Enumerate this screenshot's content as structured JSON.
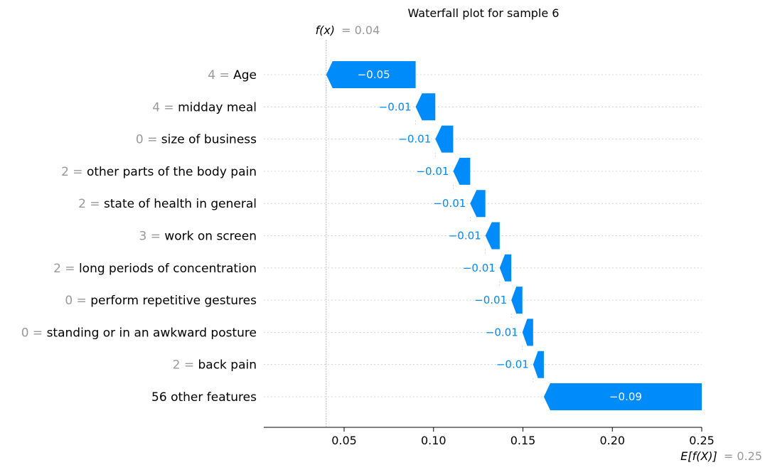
{
  "chart_data": {
    "type": "waterfall",
    "title": "Waterfall plot for sample 6",
    "fx_label": "f(x)",
    "fx_value": "= 0.04",
    "fx_numeric": 0.04,
    "efx_label": "E[f(X)]",
    "efx_value": "= 0.25",
    "efx_numeric": 0.25,
    "xlim": [
      0.005,
      0.25
    ],
    "x_ticks": [
      {
        "value": 0.05,
        "label": "0.05"
      },
      {
        "value": 0.1,
        "label": "0.10"
      },
      {
        "value": 0.15,
        "label": "0.15"
      },
      {
        "value": 0.2,
        "label": "0.20"
      },
      {
        "value": 0.25,
        "label": "0.25"
      }
    ],
    "features": [
      {
        "value": "4 =",
        "name": "Age",
        "contribution": -0.05,
        "label": "−0.05",
        "left": 0.04,
        "right": 0.09
      },
      {
        "value": "4 =",
        "name": "midday meal",
        "contribution": -0.01,
        "label": "−0.01",
        "left": 0.09,
        "right": 0.101
      },
      {
        "value": "0 =",
        "name": "size of business",
        "contribution": -0.01,
        "label": "−0.01",
        "left": 0.101,
        "right": 0.111
      },
      {
        "value": "2 =",
        "name": "other parts of the body pain",
        "contribution": -0.01,
        "label": "−0.01",
        "left": 0.111,
        "right": 0.1205
      },
      {
        "value": "2 =",
        "name": "state of health in general",
        "contribution": -0.01,
        "label": "−0.01",
        "left": 0.1205,
        "right": 0.129
      },
      {
        "value": "3 =",
        "name": "work on screen",
        "contribution": -0.01,
        "label": "−0.01",
        "left": 0.129,
        "right": 0.137
      },
      {
        "value": "2 =",
        "name": "long periods of concentration",
        "contribution": -0.01,
        "label": "−0.01",
        "left": 0.137,
        "right": 0.1435
      },
      {
        "value": "0 =",
        "name": "perform repetitive gestures",
        "contribution": -0.01,
        "label": "−0.01",
        "left": 0.1435,
        "right": 0.1497
      },
      {
        "value": "0 =",
        "name": "standing or in an awkward posture",
        "contribution": -0.01,
        "label": "−0.01",
        "left": 0.1497,
        "right": 0.1557
      },
      {
        "value": "2 =",
        "name": "back pain",
        "contribution": -0.01,
        "label": "−0.01",
        "left": 0.1557,
        "right": 0.1617
      },
      {
        "value": "",
        "name": "56 other features",
        "contribution": -0.09,
        "label": "−0.09",
        "left": 0.1617,
        "right": 0.25
      }
    ],
    "colors": {
      "negative": "#008bfb",
      "value_text": "#999999",
      "grid": "#cccccc"
    }
  }
}
